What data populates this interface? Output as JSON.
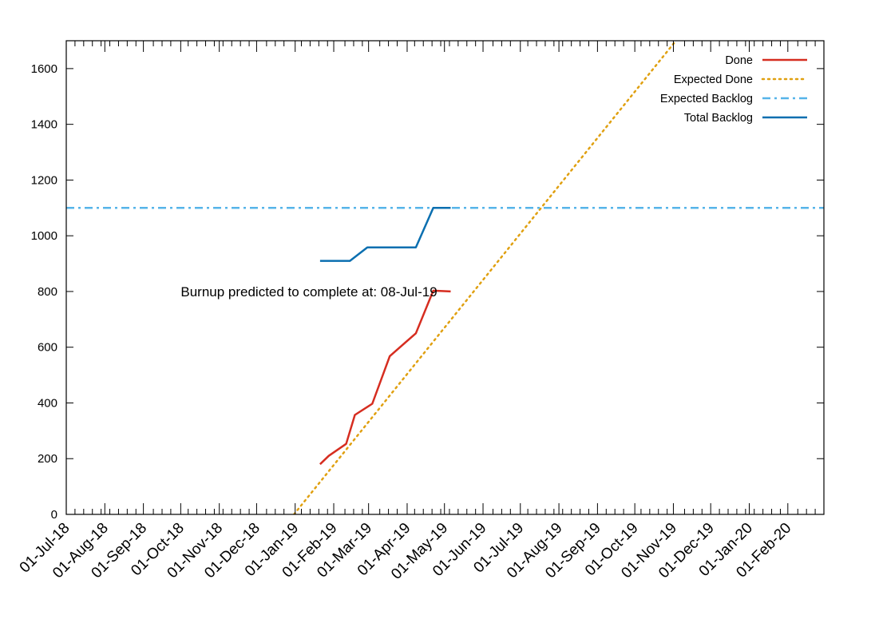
{
  "chart_data": {
    "type": "line",
    "x_axis": {
      "type": "date",
      "tick_labels": [
        "01-Jul-18",
        "01-Aug-18",
        "01-Sep-18",
        "01-Oct-18",
        "01-Nov-18",
        "01-Dec-18",
        "01-Jan-19",
        "01-Feb-19",
        "01-Mar-19",
        "01-Apr-19",
        "01-May-19",
        "01-Jun-19",
        "01-Jul-19",
        "01-Aug-19",
        "01-Sep-19",
        "01-Oct-19",
        "01-Nov-19",
        "01-Dec-19",
        "01-Jan-20",
        "01-Feb-20"
      ],
      "range": [
        "2018-07-01",
        "2020-03-01"
      ],
      "minor_tick_interval_days": 7
    },
    "y_axis": {
      "range": [
        0,
        1700
      ],
      "ticks": [
        0,
        200,
        400,
        600,
        800,
        1000,
        1200,
        1400,
        1600
      ]
    },
    "grid": false,
    "legend": "top-right",
    "series": [
      {
        "name": "Done",
        "color": "#d62d20",
        "style": "solid",
        "points": [
          [
            "2019-01-21",
            180
          ],
          [
            "2019-01-28",
            210
          ],
          [
            "2019-02-11",
            253
          ],
          [
            "2019-02-18",
            357
          ],
          [
            "2019-03-04",
            397
          ],
          [
            "2019-03-18",
            568
          ],
          [
            "2019-04-08",
            650
          ],
          [
            "2019-04-22",
            803
          ],
          [
            "2019-05-06",
            800
          ]
        ]
      },
      {
        "name": "Expected Done",
        "color": "#e0a010",
        "style": "dotted",
        "points": [
          [
            "2018-12-31",
            0
          ],
          [
            "2019-11-03",
            1700
          ]
        ]
      },
      {
        "name": "Expected Backlog",
        "color": "#56b4e9",
        "style": "dashdot",
        "points": [
          [
            "2018-07-01",
            1100
          ],
          [
            "2020-03-01",
            1100
          ]
        ]
      },
      {
        "name": "Total Backlog",
        "color": "#0a6fb0",
        "style": "solid",
        "points": [
          [
            "2019-01-21",
            910
          ],
          [
            "2019-02-14",
            910
          ],
          [
            "2019-02-28",
            958
          ],
          [
            "2019-04-08",
            958
          ],
          [
            "2019-04-22",
            1100
          ],
          [
            "2019-05-06",
            1100
          ]
        ]
      }
    ],
    "annotation": {
      "text": "Burnup predicted to complete at: 08-Jul-19",
      "x": "2018-10-01",
      "y": 800
    }
  }
}
